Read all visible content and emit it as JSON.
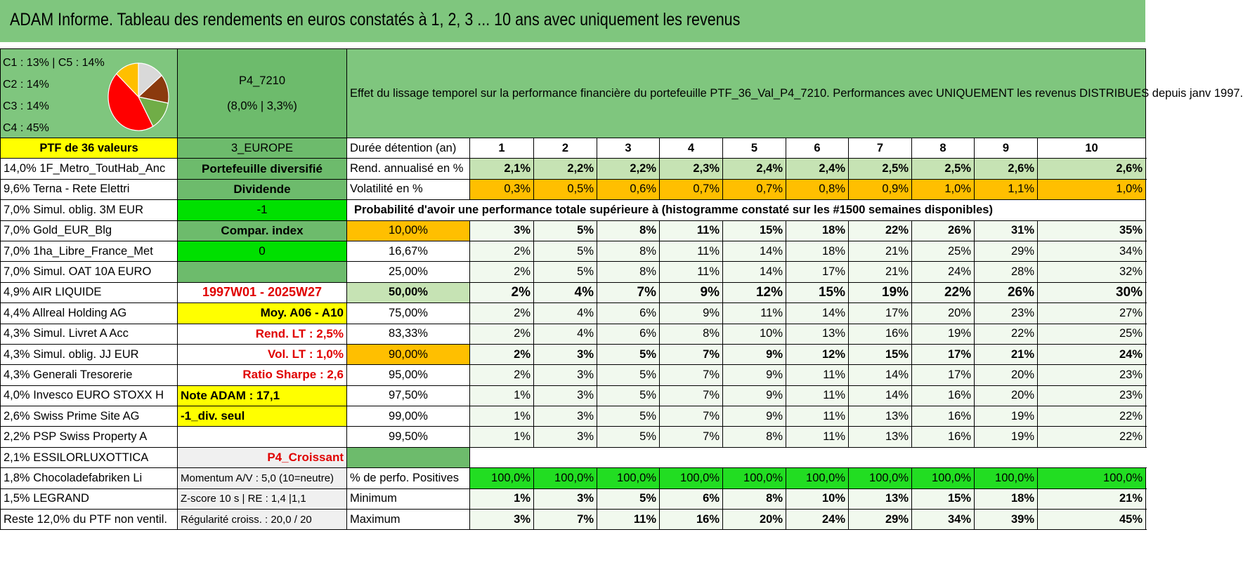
{
  "title": "ADAM Informe. Tableau des rendements en euros constatés à 1, 2, 3 ... 10 ans avec uniquement les revenus",
  "classes": {
    "c1c5": "C1 : 13% | C5 : 14%",
    "c2": "C2 : 14%",
    "c3": "C3 : 14%",
    "c4": "C4 : 45%"
  },
  "pie_data": {
    "type": "pie",
    "slices": [
      {
        "label": "C1",
        "value": 13,
        "color": "#ffbf00"
      },
      {
        "label": "C2",
        "value": 14,
        "color": "#d9d9d9"
      },
      {
        "label": "C3",
        "value": 14,
        "color": "#8b3a0e"
      },
      {
        "label": "C5",
        "value": 14,
        "color": "#70ad47"
      },
      {
        "label": "C4",
        "value": 45,
        "color": "#ff0000"
      }
    ]
  },
  "portfolio": {
    "code": "P4_7210",
    "perf": "(8,0% | 3,3%)",
    "description": "Effet du lissage temporel sur la performance financière du portefeuille PTF_36_Val_P4_7210. Performances avec UNIQUEMENT les revenus DISTRIBUES depuis janv 1997.",
    "count_label": "PTF de 36 valeurs",
    "region": "3_EUROPE"
  },
  "side": [
    "Portefeuille diversifié",
    "Dividende",
    "-1",
    "Compar. index",
    "0",
    "",
    "1997W01 - 2025W27",
    "Moy. A06 - A10",
    "Rend. LT : 2,5%",
    "Vol. LT : 1,0%",
    "Ratio Sharpe : 2,6",
    "Note ADAM : 17,1",
    "-1_div. seul",
    "",
    "P4_Croissant",
    "Momentum A/V : 5,0 (10=neutre)",
    "Z-score 10 s | RE : 1,4 |1,1",
    "Régularité croiss. : 20,0 / 20"
  ],
  "holdings": [
    "14,0% 1F_Metro_ToutHab_Anc",
    "9,6% Terna - Rete Elettri",
    "7,0% Simul. oblig. 3M EUR",
    "7,0% Gold_EUR_Blg",
    "7,0% 1ha_Libre_France_Met",
    "7,0% Simul. OAT 10A EURO",
    "4,9% AIR LIQUIDE",
    "4,4% Allreal Holding AG",
    "4,3% Simul. Livret A Acc",
    "4,3% Simul. oblig. JJ EUR",
    "4,3% Generali Tresorerie",
    "4,0% Invesco EURO STOXX H",
    "2,6% Swiss Prime Site AG",
    "2,2% PSP Swiss Property A",
    "2,1% ESSILORLUXOTTICA",
    "1,8% Chocoladefabriken Li",
    "1,5% LEGRAND",
    "Reste 12,0% du PTF non ventil."
  ],
  "table": {
    "duration_label": "Durée détention (an)",
    "years": [
      "1",
      "2",
      "3",
      "4",
      "5",
      "6",
      "7",
      "8",
      "9",
      "10"
    ],
    "rend_label": "Rend. annualisé en %",
    "rend": [
      "2,1%",
      "2,2%",
      "2,2%",
      "2,3%",
      "2,4%",
      "2,4%",
      "2,5%",
      "2,5%",
      "2,6%",
      "2,6%"
    ],
    "vol_label": "Volatilité en %",
    "vol": [
      "0,3%",
      "0,5%",
      "0,6%",
      "0,7%",
      "0,7%",
      "0,8%",
      "0,9%",
      "1,0%",
      "1,1%",
      "1,0%"
    ],
    "prob_label": "Probabilité d'avoir une performance totale supérieure à (histogramme constaté sur les #1500 semaines disponibles)",
    "prob_rows": [
      {
        "q": "10,00%",
        "v": [
          "3%",
          "5%",
          "8%",
          "11%",
          "15%",
          "18%",
          "22%",
          "26%",
          "31%",
          "35%"
        ]
      },
      {
        "q": "16,67%",
        "v": [
          "2%",
          "5%",
          "8%",
          "11%",
          "14%",
          "18%",
          "21%",
          "25%",
          "29%",
          "34%"
        ]
      },
      {
        "q": "25,00%",
        "v": [
          "2%",
          "5%",
          "8%",
          "11%",
          "14%",
          "17%",
          "21%",
          "24%",
          "28%",
          "32%"
        ]
      },
      {
        "q": "50,00%",
        "v": [
          "2%",
          "4%",
          "7%",
          "9%",
          "12%",
          "15%",
          "19%",
          "22%",
          "26%",
          "30%"
        ]
      },
      {
        "q": "75,00%",
        "v": [
          "2%",
          "4%",
          "6%",
          "9%",
          "11%",
          "14%",
          "17%",
          "20%",
          "23%",
          "27%"
        ]
      },
      {
        "q": "83,33%",
        "v": [
          "2%",
          "4%",
          "6%",
          "8%",
          "10%",
          "13%",
          "16%",
          "19%",
          "22%",
          "25%"
        ]
      },
      {
        "q": "90,00%",
        "v": [
          "2%",
          "3%",
          "5%",
          "7%",
          "9%",
          "12%",
          "15%",
          "17%",
          "21%",
          "24%"
        ]
      },
      {
        "q": "95,00%",
        "v": [
          "2%",
          "3%",
          "5%",
          "7%",
          "9%",
          "11%",
          "14%",
          "17%",
          "20%",
          "23%"
        ]
      },
      {
        "q": "97,50%",
        "v": [
          "1%",
          "3%",
          "5%",
          "7%",
          "9%",
          "11%",
          "14%",
          "16%",
          "20%",
          "23%"
        ]
      },
      {
        "q": "99,00%",
        "v": [
          "1%",
          "3%",
          "5%",
          "7%",
          "9%",
          "11%",
          "13%",
          "16%",
          "19%",
          "22%"
        ]
      },
      {
        "q": "99,50%",
        "v": [
          "1%",
          "3%",
          "5%",
          "7%",
          "8%",
          "11%",
          "13%",
          "16%",
          "19%",
          "22%"
        ]
      }
    ],
    "pos_label": "% de perfo. Positives",
    "pos": [
      "100,0%",
      "100,0%",
      "100,0%",
      "100,0%",
      "100,0%",
      "100,0%",
      "100,0%",
      "100,0%",
      "100,0%",
      "100,0%"
    ],
    "min_label": "Minimum",
    "min": [
      "1%",
      "3%",
      "5%",
      "6%",
      "8%",
      "10%",
      "13%",
      "15%",
      "18%",
      "21%"
    ],
    "max_label": "Maximum",
    "max": [
      "3%",
      "7%",
      "11%",
      "16%",
      "20%",
      "24%",
      "29%",
      "34%",
      "39%",
      "45%"
    ]
  }
}
